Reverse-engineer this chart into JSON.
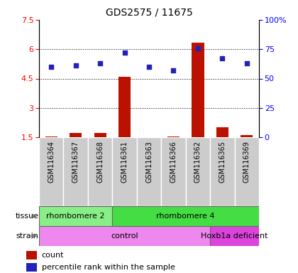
{
  "title": "GDS2575 / 11675",
  "samples": [
    "GSM116364",
    "GSM116367",
    "GSM116368",
    "GSM116361",
    "GSM116363",
    "GSM116366",
    "GSM116362",
    "GSM116365",
    "GSM116369"
  ],
  "counts": [
    1.52,
    1.72,
    1.72,
    4.6,
    1.48,
    1.52,
    6.35,
    2.0,
    1.62
  ],
  "percentiles": [
    60,
    61,
    63,
    72,
    60,
    57,
    76,
    67,
    63
  ],
  "ylim_left": [
    1.5,
    7.5
  ],
  "ylim_right": [
    0,
    100
  ],
  "yticks_left": [
    1.5,
    3.0,
    4.5,
    6.0,
    7.5
  ],
  "ytick_labels_left": [
    "1.5",
    "3",
    "4.5",
    "6",
    "7.5"
  ],
  "yticks_right": [
    0,
    25,
    50,
    75,
    100
  ],
  "ytick_labels_right": [
    "0",
    "25",
    "50",
    "75",
    "100%"
  ],
  "bar_color": "#bb1100",
  "dot_color": "#2222bb",
  "bg_color": "#ffffff",
  "tissue_groups": [
    {
      "label": "rhombomere 2",
      "start": 0,
      "end": 3,
      "color": "#88ee88"
    },
    {
      "label": "rhombomere 4",
      "start": 3,
      "end": 9,
      "color": "#44dd44"
    }
  ],
  "strain_groups": [
    {
      "label": "control",
      "start": 0,
      "end": 7,
      "color": "#ee88ee"
    },
    {
      "label": "Hoxb1a deficient",
      "start": 7,
      "end": 9,
      "color": "#dd44dd"
    }
  ],
  "legend_count_color": "#bb1100",
  "legend_pct_color": "#2222bb",
  "gridline_yticks": [
    3.0,
    4.5,
    6.0
  ],
  "sample_box_color": "#cccccc",
  "sample_box_edge": "#888888"
}
